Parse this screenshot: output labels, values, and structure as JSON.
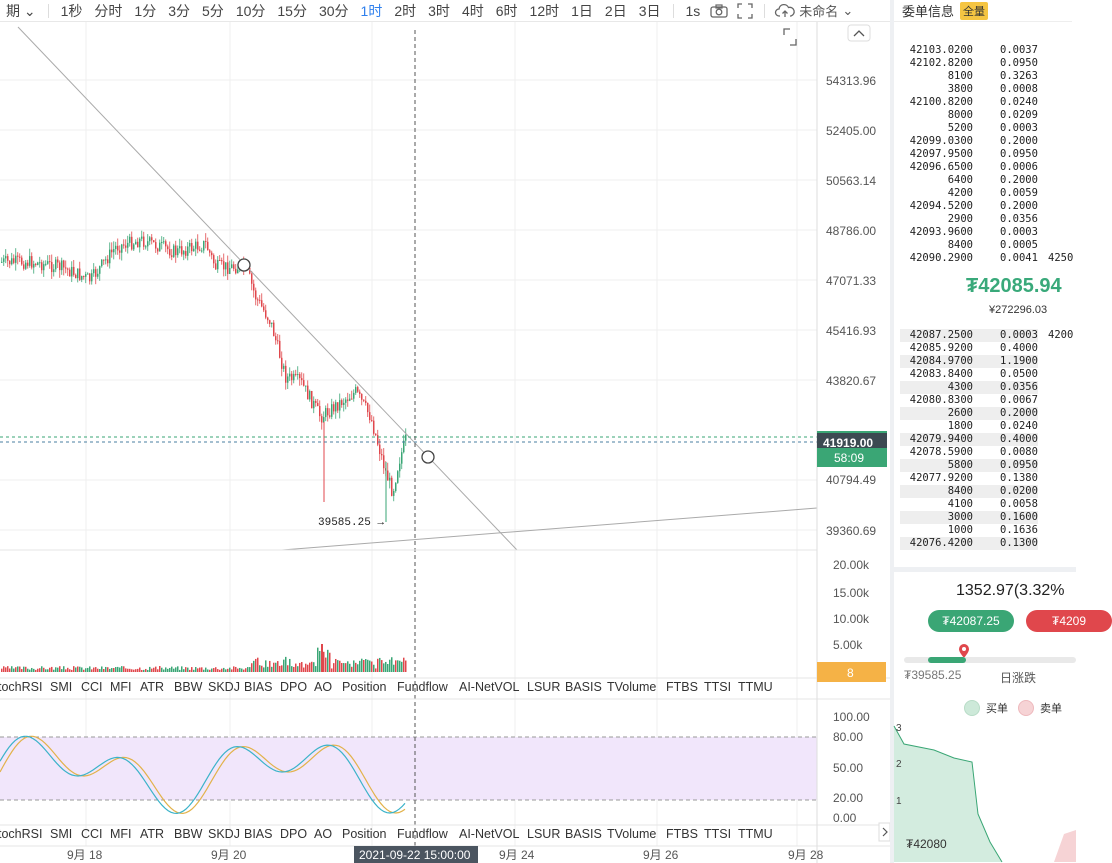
{
  "toolbar": {
    "period_label": "期",
    "timeframes": [
      "1秒",
      "分时",
      "1分",
      "3分",
      "5分",
      "10分",
      "15分",
      "30分",
      "1时",
      "2时",
      "3时",
      "4时",
      "6时",
      "12时",
      "1日",
      "2日",
      "3日"
    ],
    "active_timeframe": "1时",
    "refresh_label": "1s",
    "layout_name": "未命名"
  },
  "price_axis": [
    "54313.96",
    "52405.00",
    "50563.14",
    "48786.00",
    "47071.33",
    "45416.93",
    "43820.67",
    "40794.49",
    "39360.69"
  ],
  "current_price_label": "41919.00",
  "countdown_label": "58:09",
  "low_marker": "39585.25 →",
  "volume_axis": [
    "20.00k",
    "15.00k",
    "10.00k",
    "5.00k"
  ],
  "volume_badge": "8",
  "indicator_tabs": [
    "tochRSI",
    "SMI",
    "CCI",
    "MFI",
    "ATR",
    "BBW",
    "SKDJ",
    "BIAS",
    "DPO",
    "AO",
    "Position",
    "Fundflow",
    "AI-NetVOL",
    "LSUR",
    "BASIS",
    "TVolume",
    "FTBS",
    "TTSI",
    "TTMU"
  ],
  "rsi_axis": [
    "100.00",
    "80.00",
    "50.00",
    "20.00",
    "0.00"
  ],
  "time_axis": [
    "9月 18",
    "9月 20",
    "9月 24",
    "9月 26",
    "9月 28"
  ],
  "crosshair_time": "2021-09-22 15:00:00",
  "colors": {
    "up": "#3aa675",
    "down": "#e0474c",
    "accent": "#2f80ed",
    "rsi_band": "#f1e6fb"
  },
  "orderbook": {
    "title": "委单信息",
    "badge": "全量",
    "asks": [
      {
        "p": "42103.0200",
        "q": "0.0037"
      },
      {
        "p": "42102.8200",
        "q": "0.0950"
      },
      {
        "p": "8100",
        "q": "0.3263"
      },
      {
        "p": "3800",
        "q": "0.0008"
      },
      {
        "p": "42100.8200",
        "q": "0.0240"
      },
      {
        "p": "8000",
        "q": "0.0209"
      },
      {
        "p": "5200",
        "q": "0.0003"
      },
      {
        "p": "42099.0300",
        "q": "0.2000"
      },
      {
        "p": "42097.9500",
        "q": "0.0950"
      },
      {
        "p": "42096.6500",
        "q": "0.0006"
      },
      {
        "p": "6400",
        "q": "0.2000"
      },
      {
        "p": "4200",
        "q": "0.0059"
      },
      {
        "p": "42094.5200",
        "q": "0.2000"
      },
      {
        "p": "2900",
        "q": "0.0356"
      },
      {
        "p": "42093.9600",
        "q": "0.0003"
      },
      {
        "p": "8400",
        "q": "0.0005"
      },
      {
        "p": "42090.2900",
        "q": "0.0041",
        "x": "4250"
      }
    ],
    "last_price": "₮42085.94",
    "last_price_cny": "¥272296.03",
    "bids": [
      {
        "p": "42087.2500",
        "q": "0.0003",
        "x": "4200"
      },
      {
        "p": "42085.9200",
        "q": "0.4000"
      },
      {
        "p": "42084.9700",
        "q": "1.1900"
      },
      {
        "p": "42083.8400",
        "q": "0.0500"
      },
      {
        "p": "4300",
        "q": "0.0356"
      },
      {
        "p": "42080.8300",
        "q": "0.0067"
      },
      {
        "p": "2600",
        "q": "0.2000"
      },
      {
        "p": "1800",
        "q": "0.0240"
      },
      {
        "p": "42079.9400",
        "q": "0.4000"
      },
      {
        "p": "42078.5900",
        "q": "0.0080"
      },
      {
        "p": "5800",
        "q": "0.0950"
      },
      {
        "p": "42077.9200",
        "q": "0.1380"
      },
      {
        "p": "8400",
        "q": "0.0200"
      },
      {
        "p": "4100",
        "q": "0.0058"
      },
      {
        "p": "3000",
        "q": "0.1600"
      },
      {
        "p": "1000",
        "q": "0.1636"
      },
      {
        "p": "42076.4200",
        "q": "0.1300"
      }
    ],
    "change": "1352.97(3.32%",
    "buy_pill": "₮42087.25",
    "sell_pill": "₮4209",
    "day_low": "₮39585.25",
    "day_label": "日涨跌",
    "legend_buy": "买单",
    "legend_sell": "卖单",
    "depth_axis": [
      "3",
      "2",
      "1"
    ],
    "depth_price": "₮42080"
  }
}
